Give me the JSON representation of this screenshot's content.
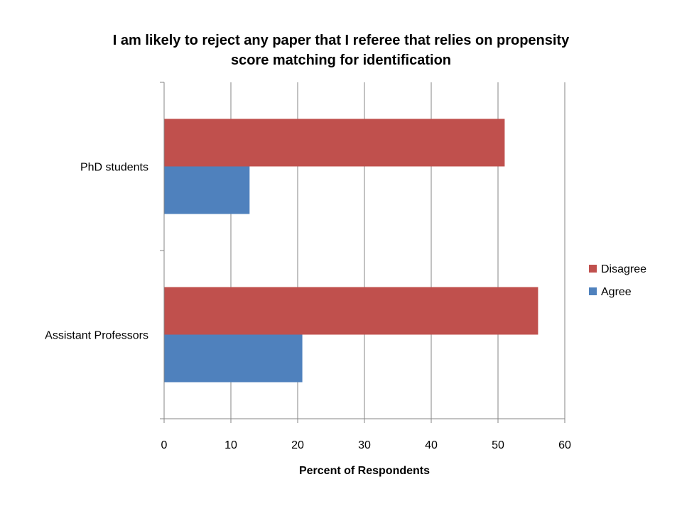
{
  "chart_data": {
    "type": "bar",
    "orientation": "horizontal",
    "title_lines": [
      "I am likely to reject any paper that I referee that relies on propensity",
      "score matching for identification"
    ],
    "categories": [
      "PhD students",
      "Assistant Professors"
    ],
    "series": [
      {
        "name": "Disagree",
        "color": "#C0504D",
        "values": [
          51,
          56
        ]
      },
      {
        "name": "Agree",
        "color": "#4F81BD",
        "values": [
          12.8,
          20.7
        ]
      }
    ],
    "xlabel": "Percent of Respondents",
    "ylabel": "",
    "xlim": [
      0,
      60
    ],
    "xticks": [
      0,
      10,
      20,
      30,
      40,
      50,
      60
    ],
    "grid": "vertical",
    "legend_position": "right"
  }
}
